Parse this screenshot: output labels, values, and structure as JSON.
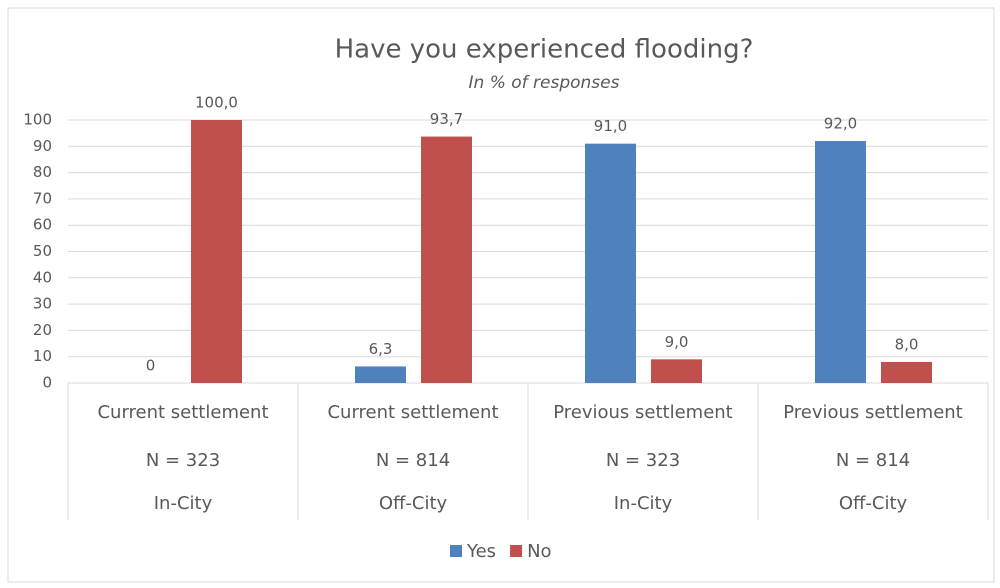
{
  "chart_data": {
    "type": "bar",
    "title": "Have you experienced flooding?",
    "subtitle": "In % of responses",
    "categories": [
      [
        "Current settlement",
        "N = 323",
        "In-City"
      ],
      [
        "Current settlement",
        "N = 814",
        "Off-City"
      ],
      [
        "Previous settlement",
        "N = 323",
        "In-City"
      ],
      [
        "Previous settlement",
        "N = 814",
        "Off-City"
      ]
    ],
    "series": [
      {
        "name": "Yes",
        "color": "#4f81bd",
        "values": [
          0,
          6.3,
          91.0,
          92.0
        ],
        "value_labels": [
          "0",
          "6,3",
          "91,0",
          "92,0"
        ]
      },
      {
        "name": "No",
        "color": "#c0504d",
        "values": [
          100.0,
          93.7,
          9.0,
          8.0
        ],
        "value_labels": [
          "100,0",
          "93,7",
          "9,0",
          "8,0"
        ]
      }
    ],
    "ylim": [
      0,
      100
    ],
    "yticks": [
      0,
      10,
      20,
      30,
      40,
      50,
      60,
      70,
      80,
      90,
      100
    ],
    "grid": true,
    "legend": "bottom"
  }
}
